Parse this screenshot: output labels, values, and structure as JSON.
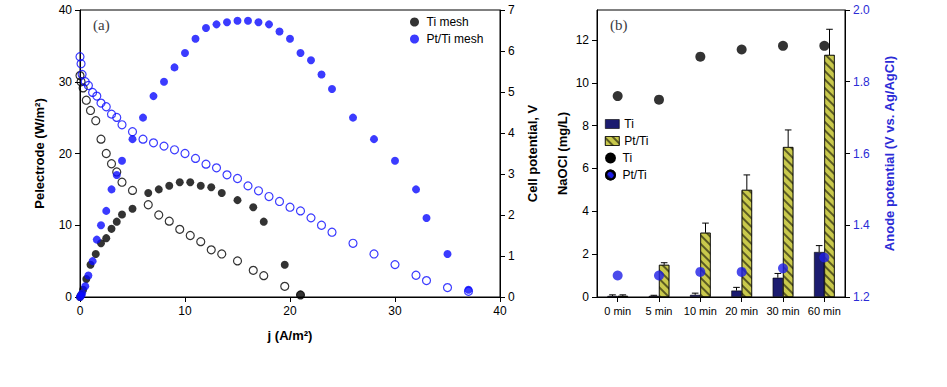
{
  "chart_data": [
    {
      "type": "scatter",
      "title": "(a)",
      "xlabel": "j (A/m²)",
      "ylabel": "Pelectrode (W/m²)",
      "y2label": "Cell potential, V",
      "xlim": [
        0,
        40
      ],
      "xticks": [
        0,
        10,
        20,
        30,
        40
      ],
      "ylim": [
        0,
        40
      ],
      "yticks": [
        0,
        10,
        20,
        30,
        40
      ],
      "y2lim": [
        0,
        7
      ],
      "y2ticks": [
        0,
        1,
        2,
        3,
        4,
        5,
        6,
        7
      ],
      "grid": false,
      "legend": "upper right",
      "series": [
        {
          "name": "Ti mesh",
          "color": "#000000",
          "marker": "filled",
          "x": [
            0,
            0.1,
            0.3,
            0.6,
            1,
            1.5,
            2,
            2.5,
            3,
            3.5,
            4,
            5,
            6.5,
            7.5,
            8.5,
            9.5,
            10.5,
            11.5,
            12.5,
            13.5,
            15,
            16.5,
            17.5,
            19.5,
            21
          ],
          "values": [
            0,
            0.3,
            1,
            2.5,
            4.5,
            6,
            7.5,
            8.2,
            9.5,
            10.5,
            11.5,
            12.3,
            14.5,
            15,
            15.5,
            16,
            16,
            15.5,
            15.3,
            14.5,
            13.5,
            12.5,
            10.5,
            4.5,
            0.3
          ]
        },
        {
          "name": "Pt/Ti mesh",
          "color": "#0a0aff",
          "marker": "filled",
          "x": [
            0,
            0.1,
            0.2,
            0.5,
            0.8,
            1.2,
            1.6,
            2,
            2.5,
            3,
            3.5,
            4,
            5,
            6,
            7,
            8,
            9,
            10,
            11,
            12,
            13,
            14,
            15,
            16,
            17,
            18,
            19,
            20,
            21,
            22,
            23,
            24,
            26,
            28,
            30,
            32,
            33,
            35,
            37
          ],
          "values": [
            0,
            0.2,
            0.5,
            1.5,
            3,
            5,
            8,
            10,
            12,
            15,
            17,
            19,
            22,
            25,
            28,
            30,
            32,
            34,
            36,
            37.5,
            38,
            38.3,
            38.5,
            38.5,
            38.3,
            38,
            37,
            36,
            34,
            33,
            31,
            29,
            25,
            22,
            19,
            15,
            11,
            6,
            1
          ]
        },
        {
          "name": "Ti mesh",
          "color": "#000000",
          "marker": "open",
          "axis": "y2",
          "x": [
            0,
            0.1,
            0.3,
            0.6,
            1,
            1.5,
            2,
            2.5,
            3,
            3.5,
            4,
            5,
            6.5,
            7.5,
            8.5,
            9.5,
            10.5,
            11.5,
            12.5,
            13.5,
            15,
            16.5,
            17.5,
            19.5,
            21
          ],
          "values": [
            5.4,
            5.25,
            5.1,
            4.8,
            4.55,
            4.3,
            3.85,
            3.5,
            3.25,
            3.05,
            2.8,
            2.6,
            2.25,
            2.0,
            1.85,
            1.65,
            1.5,
            1.35,
            1.15,
            1.05,
            0.88,
            0.65,
            0.52,
            0.26,
            0.05
          ]
        },
        {
          "name": "Pt/Ti mesh",
          "color": "#0a0aff",
          "marker": "open",
          "axis": "y2",
          "x": [
            0,
            0.1,
            0.2,
            0.5,
            0.8,
            1.2,
            1.6,
            2,
            2.5,
            3,
            3.5,
            4,
            5,
            6,
            7,
            8,
            9,
            10,
            11,
            12,
            13,
            14,
            15,
            16,
            17,
            18,
            19,
            20,
            21,
            22,
            23,
            24,
            26,
            28,
            30,
            32,
            33,
            35,
            37
          ],
          "values": [
            5.86,
            5.69,
            5.43,
            5.25,
            5.16,
            4.99,
            4.9,
            4.73,
            4.64,
            4.46,
            4.38,
            4.2,
            4.03,
            3.85,
            3.76,
            3.68,
            3.59,
            3.5,
            3.38,
            3.24,
            3.15,
            2.98,
            2.89,
            2.71,
            2.59,
            2.45,
            2.33,
            2.19,
            2.1,
            1.93,
            1.75,
            1.58,
            1.31,
            1.05,
            0.79,
            0.53,
            0.4,
            0.23,
            0.14
          ]
        }
      ]
    },
    {
      "type": "bar",
      "title": "(b)",
      "ylabel": "NaOCl (mg/L)",
      "y2label": "Anode potential (V vs. Ag/AgCl)",
      "categories": [
        "0 min",
        "5 min",
        "10 min",
        "20 min",
        "30 min",
        "60 min"
      ],
      "ylim": [
        0,
        13.4
      ],
      "yticks": [
        0,
        2,
        4,
        6,
        8,
        10,
        12
      ],
      "y2lim": [
        1.2,
        2.0
      ],
      "y2ticks": [
        1.2,
        1.4,
        1.6,
        1.8,
        {
          "value": 2,
          "label": "2.0"
        }
      ],
      "grid": false,
      "legend": "left",
      "series": [
        {
          "name": "Ti",
          "type": "bar",
          "color": "#1c1c70",
          "values": [
            0.05,
            0.05,
            0.1,
            0.3,
            0.9,
            2.1
          ],
          "errors": [
            0.05,
            0.03,
            0.08,
            0.15,
            0.2,
            0.3
          ]
        },
        {
          "name": "Pt/Ti",
          "type": "bar",
          "color": "#c9c94c",
          "values": [
            0.05,
            1.5,
            3.0,
            5.0,
            7.0,
            11.3
          ],
          "errors": [
            0.05,
            0.1,
            0.45,
            0.7,
            0.8,
            1.2
          ]
        },
        {
          "name": "Ti",
          "type": "scatter",
          "axis": "y2",
          "color": "#000000",
          "marker": "filled",
          "values": [
            1.76,
            1.75,
            1.87,
            1.89,
            1.9,
            1.9
          ]
        },
        {
          "name": "Pt/Ti",
          "type": "scatter",
          "axis": "y2",
          "color": "#1e1ee6",
          "marker": "filled",
          "values": [
            1.26,
            1.26,
            1.27,
            1.27,
            1.28,
            1.31
          ]
        }
      ]
    }
  ]
}
